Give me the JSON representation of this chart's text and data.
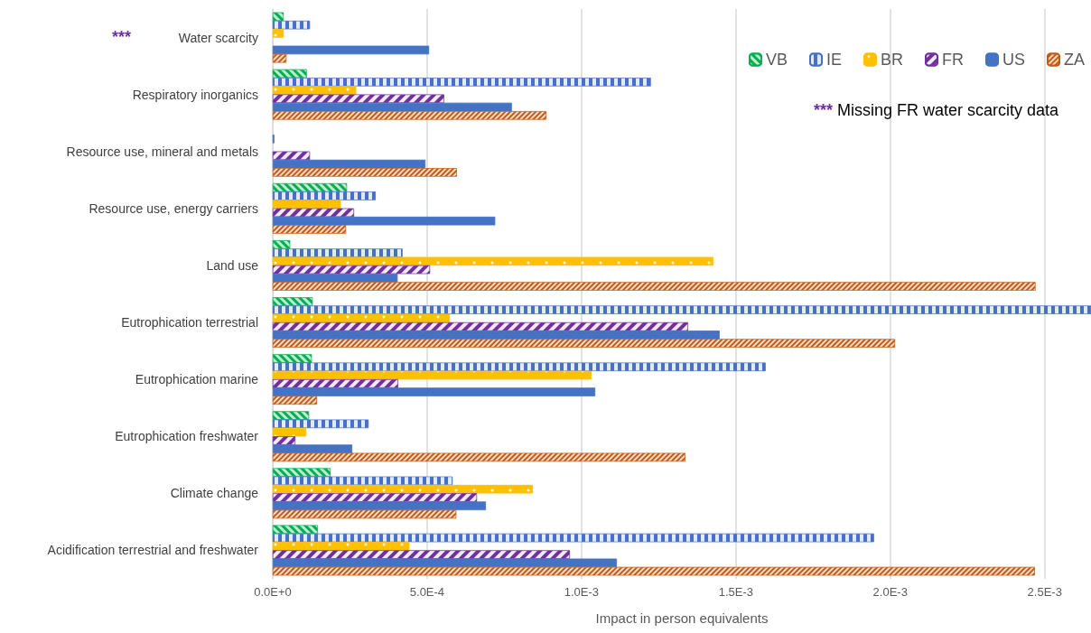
{
  "chart_data": {
    "type": "bar",
    "orientation": "horizontal",
    "xlabel": "Impact in person equivalents",
    "categories": [
      "Water scarcity",
      "Respiratory inorganics",
      "Resource use, mineral and metals",
      "Resource use, energy carriers",
      "Land use",
      "Eutrophication terrestrial",
      "Eutrophication marine",
      "Eutrophication freshwater",
      "Climate change",
      "Acidification terrestrial and freshwater"
    ],
    "series": [
      {
        "name": "VB",
        "color": "#00b050",
        "values": [
          3.5e-05,
          0.00011,
          null,
          0.00024,
          5.6e-05,
          0.000129,
          0.000126,
          0.000117,
          0.000187,
          0.000146
        ]
      },
      {
        "name": "IE",
        "color": "#4472c4",
        "values": [
          0.00012,
          0.001225,
          5e-06,
          0.000333,
          0.00042,
          0.00265,
          0.001596,
          0.00031,
          0.000582,
          0.001947
        ]
      },
      {
        "name": "BR",
        "color": "#ffc000",
        "values": [
          3.5e-05,
          0.00027,
          null,
          0.00022,
          0.001427,
          0.000573,
          0.001032,
          0.000108,
          0.000842,
          0.000442
        ]
      },
      {
        "name": "FR",
        "color": "#7030a0",
        "values": [
          null,
          0.000555,
          0.00012,
          0.000263,
          0.000509,
          0.001345,
          0.000406,
          7.3e-05,
          0.000661,
          0.000962
        ]
      },
      {
        "name": "US",
        "color": "#4472c4",
        "values": [
          0.000506,
          0.000774,
          0.000494,
          0.00072,
          0.000404,
          0.001447,
          0.001044,
          0.000257,
          0.00069,
          0.001114
        ]
      },
      {
        "name": "ZA",
        "color": "#c55a11",
        "values": [
          4.4e-05,
          0.000886,
          0.000596,
          0.000237,
          0.00247,
          0.002015,
          0.000143,
          0.001336,
          0.000594,
          0.002468
        ]
      }
    ],
    "xlim": [
      0,
      0.00265
    ],
    "xticks": [
      {
        "value": 0,
        "label": "0.0E+0"
      },
      {
        "value": 0.0005,
        "label": "5.0E-4"
      },
      {
        "value": 0.001,
        "label": "1.0E-3"
      },
      {
        "value": 0.0015,
        "label": "1.5E-3"
      },
      {
        "value": 0.002,
        "label": "2.0E-3"
      },
      {
        "value": 0.0025,
        "label": "2.5E-3"
      }
    ],
    "grid": "x",
    "legend": "top right",
    "annotations": [
      "***",
      "*** Missing FR water scarcity data"
    ]
  }
}
